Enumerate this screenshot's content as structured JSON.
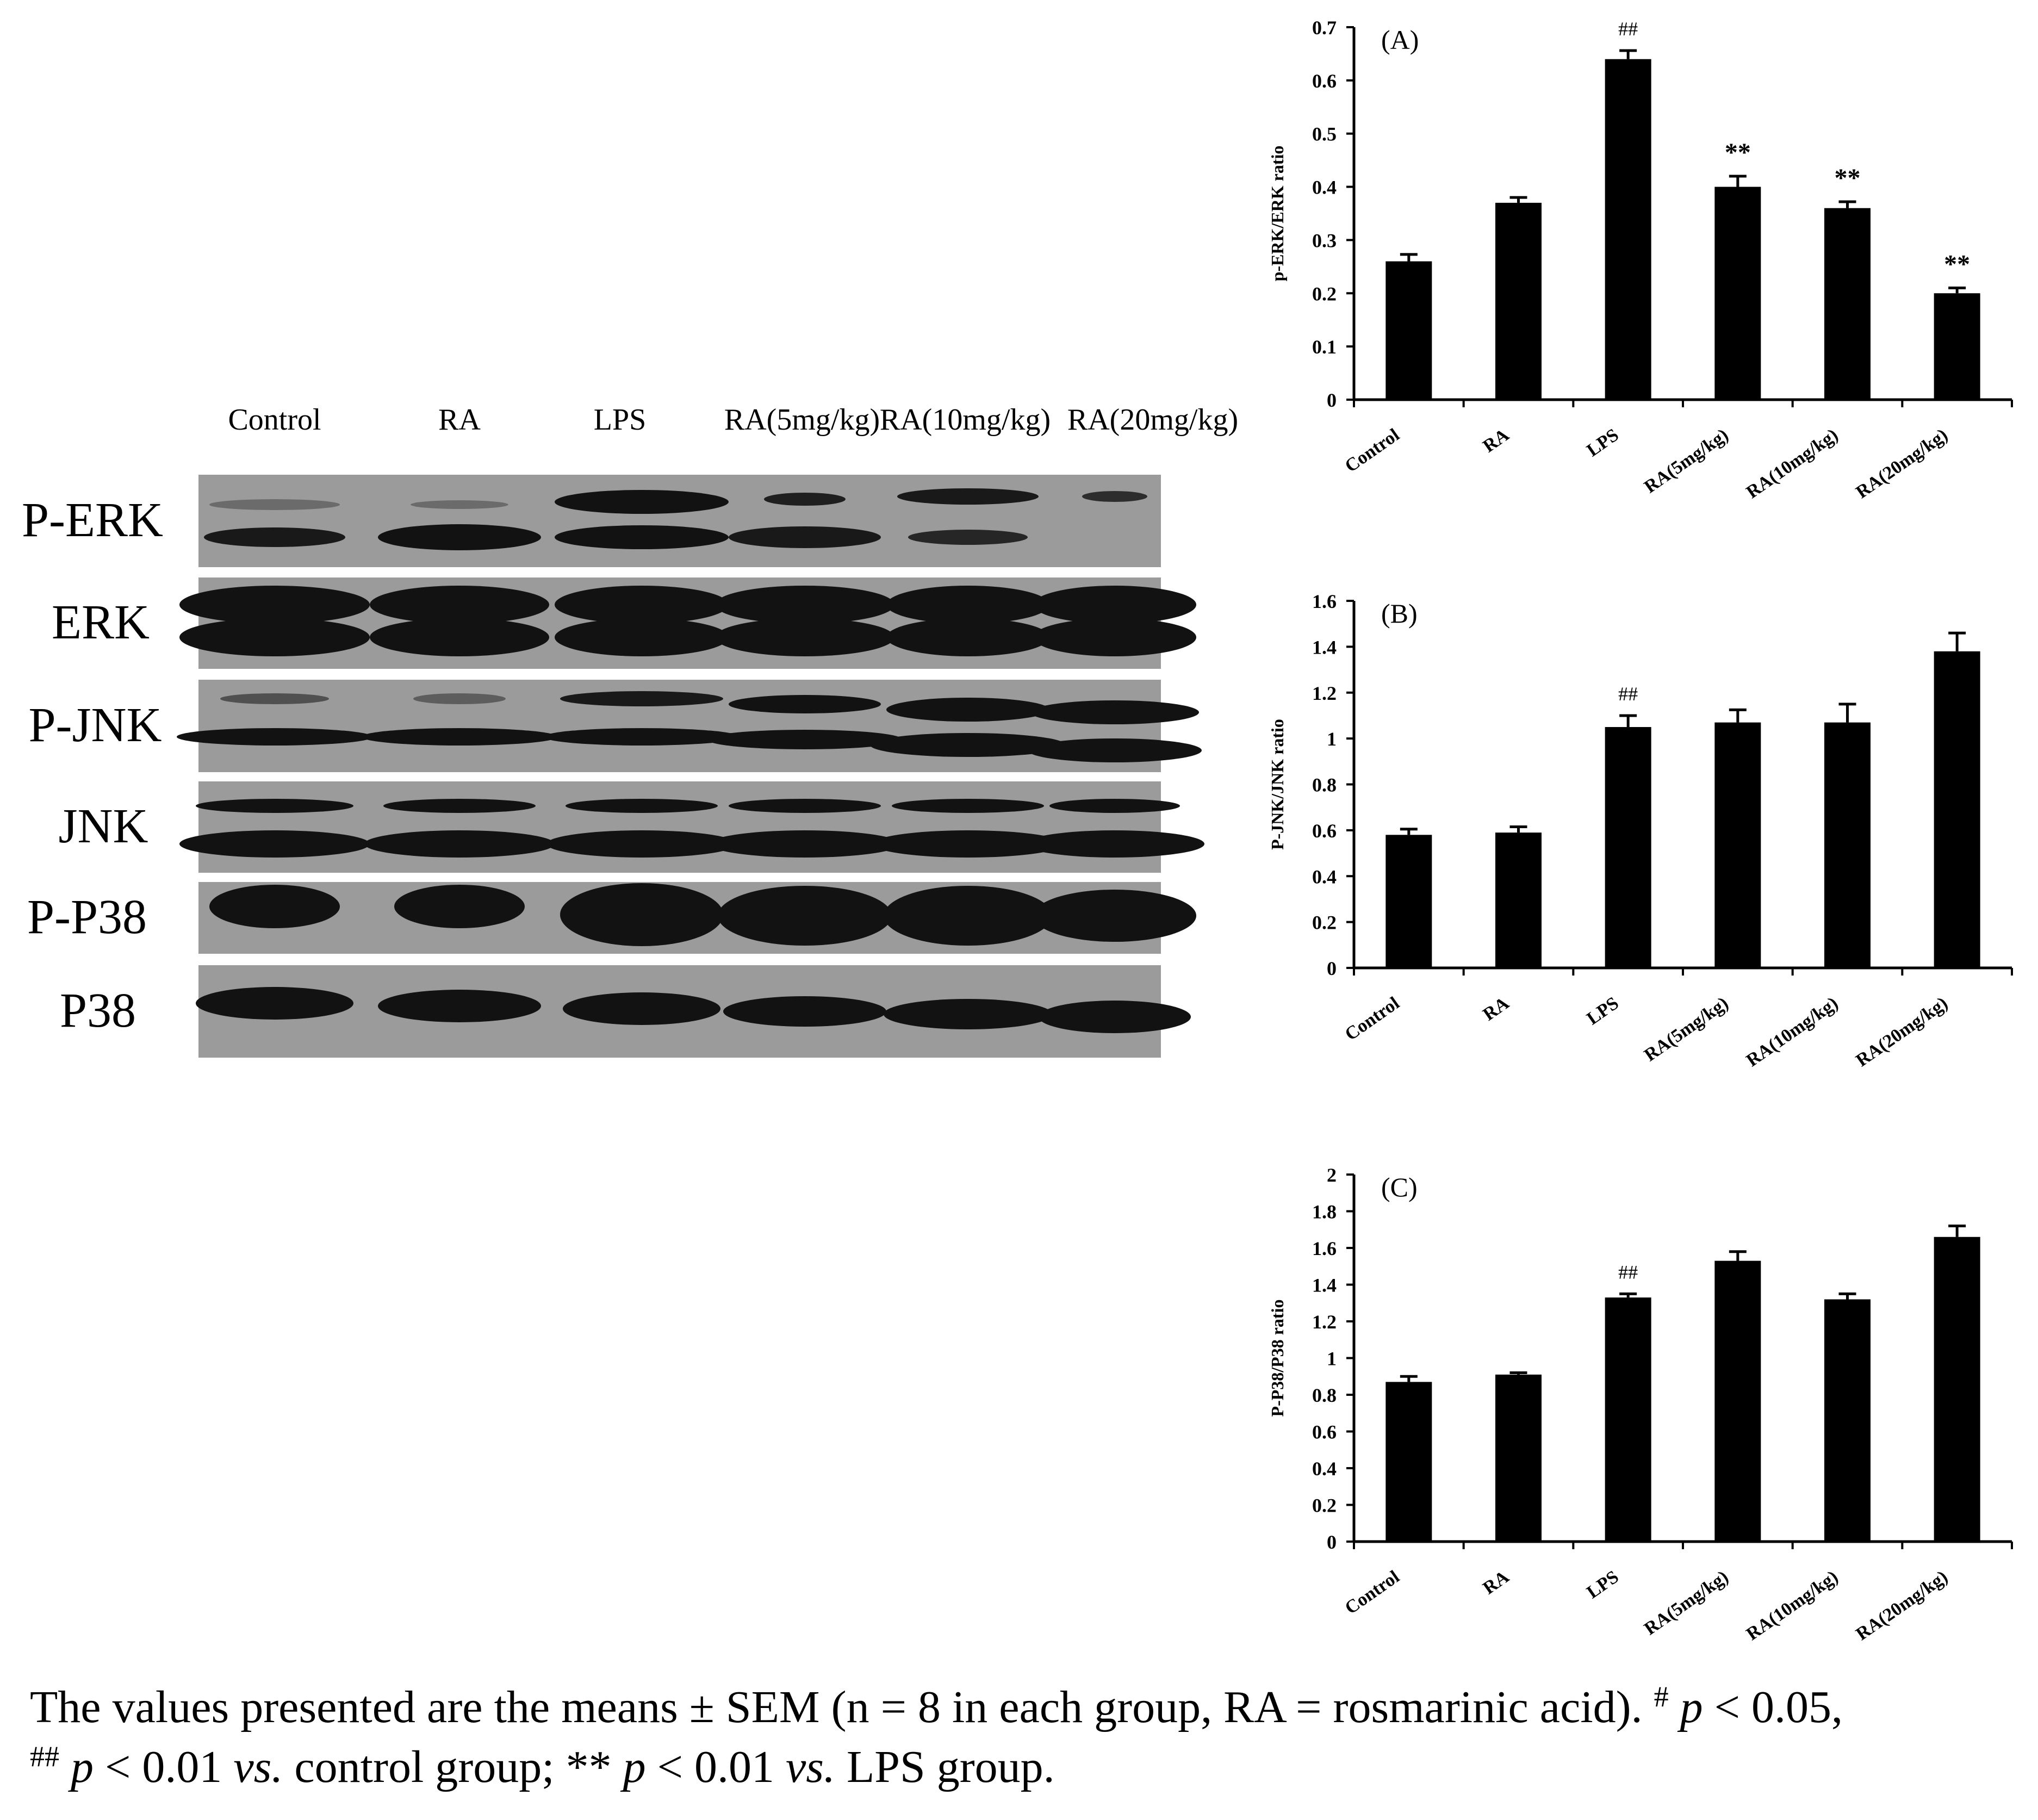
{
  "blot": {
    "lanes": [
      "Control",
      "RA",
      "LPS",
      "RA(5mg/kg)",
      "RA(10mg/kg)",
      "RA(20mg/kg)"
    ],
    "rows": [
      "P-ERK",
      "ERK",
      "P-JNK",
      "JNK",
      "P-P38",
      "P38"
    ],
    "band_color": "#121212",
    "background_color": "#9b9b9b"
  },
  "chart_data": [
    {
      "type": "bar",
      "title": "(A)",
      "categories": [
        "Control",
        "RA",
        "LPS",
        "RA(5mg/kg)",
        "RA(10mg/kg)",
        "RA(20mg/kg)"
      ],
      "values": [
        0.26,
        0.37,
        0.64,
        0.4,
        0.36,
        0.2
      ],
      "errors": [
        0.013,
        0.01,
        0.016,
        0.02,
        0.012,
        0.01
      ],
      "annotations": [
        "",
        "",
        "##",
        "**",
        "**",
        "**"
      ],
      "ylabel": "p-ERK/ERK ratio",
      "ylim": [
        0,
        0.7
      ],
      "yticks": [
        "0",
        "0.1",
        "0.2",
        "0.3",
        "0.4",
        "0.5",
        "0.6",
        "0.7"
      ],
      "bar_color": "#000000"
    },
    {
      "type": "bar",
      "title": "(B)",
      "categories": [
        "Control",
        "RA",
        "LPS",
        "RA(5mg/kg)",
        "RA(10mg/kg)",
        "RA(20mg/kg)"
      ],
      "values": [
        0.58,
        0.59,
        1.05,
        1.07,
        1.07,
        1.38
      ],
      "errors": [
        0.025,
        0.025,
        0.05,
        0.055,
        0.08,
        0.08
      ],
      "annotations": [
        "",
        "",
        "##",
        "",
        "",
        ""
      ],
      "ylabel": "P-JNK/JNK ratio",
      "ylim": [
        0,
        1.6
      ],
      "yticks": [
        "0",
        "0.2",
        "0.4",
        "0.6",
        "0.8",
        "1",
        "1.2",
        "1.4",
        "1.6"
      ],
      "bar_color": "#000000"
    },
    {
      "type": "bar",
      "title": "(C)",
      "categories": [
        "Control",
        "RA",
        "LPS",
        "RA(5mg/kg)",
        "RA(10mg/kg)",
        "RA(20mg/kg)"
      ],
      "values": [
        0.87,
        0.91,
        1.33,
        1.53,
        1.32,
        1.66
      ],
      "errors": [
        0.03,
        0.01,
        0.02,
        0.05,
        0.03,
        0.06
      ],
      "annotations": [
        "",
        "",
        "##",
        "",
        "",
        ""
      ],
      "ylabel": "P-P38/P38 ratio",
      "ylim": [
        0,
        2
      ],
      "yticks": [
        "0",
        "0.2",
        "0.4",
        "0.6",
        "0.8",
        "1",
        "1.2",
        "1.4",
        "1.6",
        "1.8",
        "2"
      ],
      "bar_color": "#000000"
    }
  ]
}
